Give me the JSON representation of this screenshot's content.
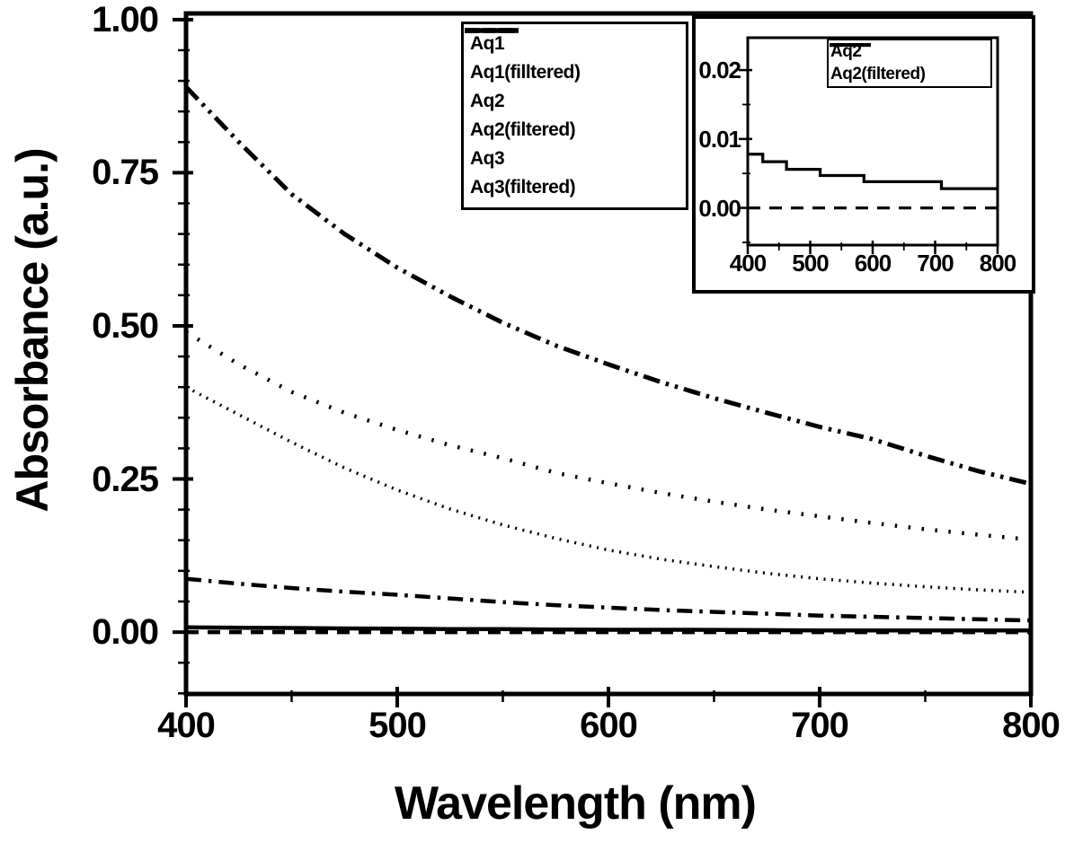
{
  "figure": {
    "background": "#ffffff",
    "line_color": "#000000"
  },
  "chart_data": [
    {
      "id": "main",
      "type": "line",
      "title": "",
      "xlabel": "Wavelength (nm)",
      "ylabel": "Absorbance (a.u.)",
      "xlim": [
        400,
        800
      ],
      "ylim": [
        -0.101,
        1.01
      ],
      "xticks": [
        400,
        500,
        600,
        700,
        800
      ],
      "xtick_labels": [
        "400",
        "500",
        "600",
        "700",
        "800"
      ],
      "xminorticks": [
        450,
        550,
        650,
        750
      ],
      "yticks": [
        0.0,
        0.25,
        0.5,
        0.75,
        1.0
      ],
      "ytick_labels": [
        "0.00",
        "0.25",
        "0.50",
        "0.75",
        "1.00"
      ],
      "yminor_step": 0.05,
      "grid": false,
      "legend_position": "top-inside-center",
      "x": [
        400,
        425,
        450,
        475,
        500,
        525,
        550,
        575,
        600,
        625,
        650,
        675,
        700,
        725,
        750,
        775,
        800
      ],
      "series": [
        {
          "name": "Aq1",
          "style": "dot-sparse",
          "values": [
            0.49,
            0.437,
            0.392,
            0.358,
            0.33,
            0.305,
            0.284,
            0.26,
            0.243,
            0.227,
            0.213,
            0.2,
            0.189,
            0.178,
            0.168,
            0.159,
            0.151
          ]
        },
        {
          "name": "Aq1(filltered)",
          "style": "dash-dot",
          "values": [
            0.087,
            0.079,
            0.072,
            0.066,
            0.061,
            0.055,
            0.049,
            0.044,
            0.04,
            0.036,
            0.033,
            0.03,
            0.027,
            0.025,
            0.023,
            0.021,
            0.019
          ]
        },
        {
          "name": "Aq2",
          "style": "solid",
          "values": [
            0.0078,
            0.0072,
            0.0067,
            0.006,
            0.0056,
            0.005,
            0.0048,
            0.0042,
            0.0038,
            0.0038,
            0.0036,
            0.0032,
            0.0028,
            0.0028,
            0.0028,
            0.0028,
            0.0028
          ]
        },
        {
          "name": "Aq2(filtered)",
          "style": "dash",
          "values": [
            0,
            0,
            0,
            0,
            0,
            0,
            0,
            0,
            0,
            0,
            0,
            0,
            0,
            0,
            0,
            0,
            0
          ]
        },
        {
          "name": "Aq3",
          "style": "dash-dot-dot",
          "values": [
            0.89,
            0.8,
            0.715,
            0.65,
            0.595,
            0.548,
            0.505,
            0.468,
            0.437,
            0.408,
            0.382,
            0.358,
            0.335,
            0.315,
            0.288,
            0.263,
            0.242
          ]
        },
        {
          "name": "Aq3(filtered)",
          "style": "dot-dense",
          "values": [
            0.4,
            0.355,
            0.31,
            0.268,
            0.232,
            0.201,
            0.175,
            0.153,
            0.134,
            0.119,
            0.107,
            0.096,
            0.087,
            0.08,
            0.074,
            0.069,
            0.065
          ]
        }
      ]
    },
    {
      "id": "inset",
      "type": "line",
      "title": "",
      "xlabel": "",
      "ylabel": "",
      "xlim": [
        400,
        800
      ],
      "ylim": [
        -0.0054,
        0.0247
      ],
      "xticks": [
        400,
        500,
        600,
        700,
        800
      ],
      "xtick_labels": [
        "400",
        "500",
        "600",
        "700",
        "800"
      ],
      "xminorticks": [
        450,
        550,
        650,
        750
      ],
      "yticks": [
        0.0,
        0.01,
        0.02
      ],
      "ytick_labels": [
        "0.00",
        "0.01",
        "0.02"
      ],
      "yminor_step": 0.005,
      "grid": false,
      "legend_position": "top-right-inside",
      "series": [
        {
          "name": "Aq2",
          "style": "solid",
          "points": [
            [
              400,
              0.0078
            ],
            [
              424,
              0.0078
            ],
            [
              424,
              0.0067
            ],
            [
              462,
              0.0067
            ],
            [
              462,
              0.0056
            ],
            [
              516,
              0.0056
            ],
            [
              516,
              0.0047
            ],
            [
              586,
              0.0047
            ],
            [
              586,
              0.0038
            ],
            [
              710,
              0.0038
            ],
            [
              710,
              0.0028
            ],
            [
              800,
              0.0028
            ]
          ]
        },
        {
          "name": "Aq2(filtered)",
          "style": "dash",
          "points": [
            [
              400,
              0.0
            ],
            [
              800,
              0.0
            ]
          ]
        }
      ]
    }
  ]
}
